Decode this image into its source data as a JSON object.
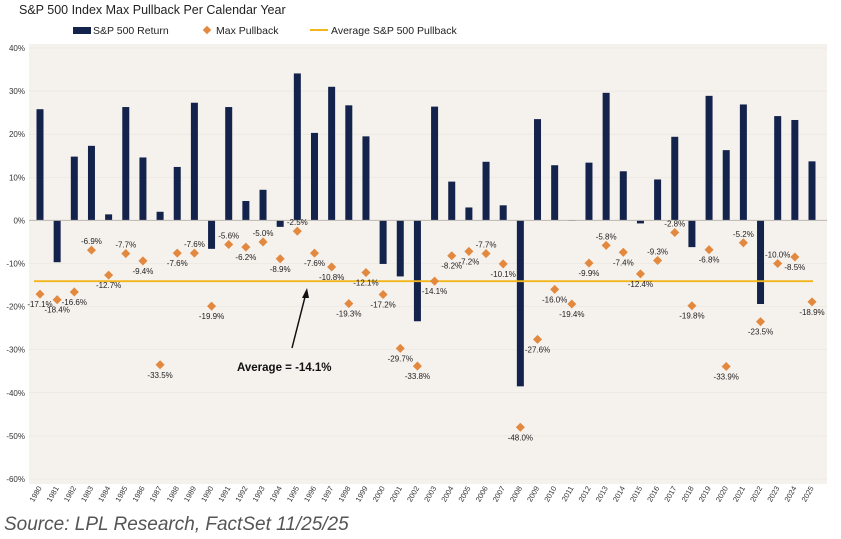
{
  "chart_data": {
    "type": "bar",
    "title": "S&P 500 Index Max Pullback Per Calendar Year",
    "categories": [
      "1980",
      "1981",
      "1982",
      "1983",
      "1984",
      "1985",
      "1986",
      "1987",
      "1988",
      "1989",
      "1990",
      "1991",
      "1992",
      "1993",
      "1994",
      "1995",
      "1996",
      "1997",
      "1998",
      "1999",
      "2000",
      "2001",
      "2002",
      "2003",
      "2004",
      "2005",
      "2006",
      "2007",
      "2008",
      "2009",
      "2010",
      "2011",
      "2012",
      "2013",
      "2014",
      "2015",
      "2016",
      "2017",
      "2018",
      "2019",
      "2020",
      "2021",
      "2022",
      "2023",
      "2024",
      "2025"
    ],
    "series": [
      {
        "name": "S&P 500 Return",
        "kind": "bar",
        "color": "#14234b",
        "values": [
          25.8,
          -9.7,
          14.8,
          17.3,
          1.4,
          26.3,
          14.6,
          2.0,
          12.4,
          27.3,
          -6.6,
          26.3,
          4.5,
          7.1,
          -1.5,
          34.1,
          20.3,
          31.0,
          26.7,
          19.5,
          -10.1,
          -13.0,
          -23.4,
          26.4,
          9.0,
          3.0,
          13.6,
          3.5,
          -38.5,
          23.5,
          12.8,
          0.0,
          13.4,
          29.6,
          11.4,
          -0.7,
          9.5,
          19.4,
          -6.2,
          28.9,
          16.3,
          26.9,
          -19.4,
          24.2,
          23.3,
          13.7
        ]
      },
      {
        "name": "Max Pullback",
        "kind": "scatter",
        "color": "#e2893f",
        "values": [
          -17.1,
          -18.4,
          -16.6,
          -6.9,
          -12.7,
          -7.7,
          -9.4,
          -33.5,
          -7.6,
          -7.6,
          -19.9,
          -5.6,
          -6.2,
          -5.0,
          -8.9,
          -2.5,
          -7.6,
          -10.8,
          -19.3,
          -12.1,
          -17.2,
          -29.7,
          -33.8,
          -14.1,
          -8.2,
          -7.2,
          -7.7,
          -10.1,
          -48.0,
          -27.6,
          -16.0,
          -19.4,
          -9.9,
          -5.8,
          -7.4,
          -12.4,
          -9.3,
          -2.8,
          -19.8,
          -6.8,
          -33.9,
          -5.2,
          -23.5,
          -10.0,
          -8.5,
          -18.9
        ]
      },
      {
        "name": "Average S&P 500 Pullback",
        "kind": "line",
        "color": "#f2b61c",
        "value": -14.1
      }
    ],
    "pullback_labels": [
      "-17.1%",
      "-18.4%",
      "-16.6%",
      "-6.9%",
      "-12.7%",
      "-7.7%",
      "-9.4%",
      "-33.5%",
      "-7.6%",
      "-7.6%",
      "-19.9%",
      "-5.6%",
      "-6.2%",
      "-5.0%",
      "-8.9%",
      "-2.5%",
      "-7.6%",
      "-10.8%",
      "-19.3%",
      "-12.1%",
      "-17.2%",
      "-29.7%",
      "-33.8%",
      "-14.1%",
      "-8.2%",
      "-7.2%",
      "-7.7%",
      "-10.1%",
      "-48.0%",
      "-27.6%",
      "-16.0%",
      "-19.4%",
      "-9.9%",
      "-5.8%",
      "-7.4%",
      "-12.4%",
      "-9.3%",
      "-2.8%",
      "-19.8%",
      "-6.8%",
      "-33.9%",
      "-5.2%",
      "-23.5%",
      "-10.0%",
      "-8.5%",
      "-18.9%"
    ],
    "label_below": [
      true,
      true,
      true,
      false,
      true,
      false,
      true,
      true,
      true,
      false,
      true,
      false,
      true,
      false,
      true,
      false,
      true,
      true,
      true,
      true,
      true,
      true,
      true,
      true,
      true,
      true,
      false,
      true,
      true,
      true,
      true,
      true,
      true,
      false,
      true,
      true,
      false,
      false,
      true,
      true,
      true,
      false,
      true,
      false,
      true,
      true
    ],
    "y_ticks": [
      "40%",
      "30%",
      "20%",
      "10%",
      "0%",
      "-10%",
      "-20%",
      "-30%",
      "-40%",
      "-50%",
      "-60%"
    ],
    "ylim": [
      -60,
      40
    ],
    "annotation": "Average = -14.1%",
    "legend": [
      "S&P 500 Return",
      "Max Pullback",
      "Average S&P 500 Pullback"
    ]
  },
  "source": "Source: LPL Research, FactSet 11/25/25"
}
